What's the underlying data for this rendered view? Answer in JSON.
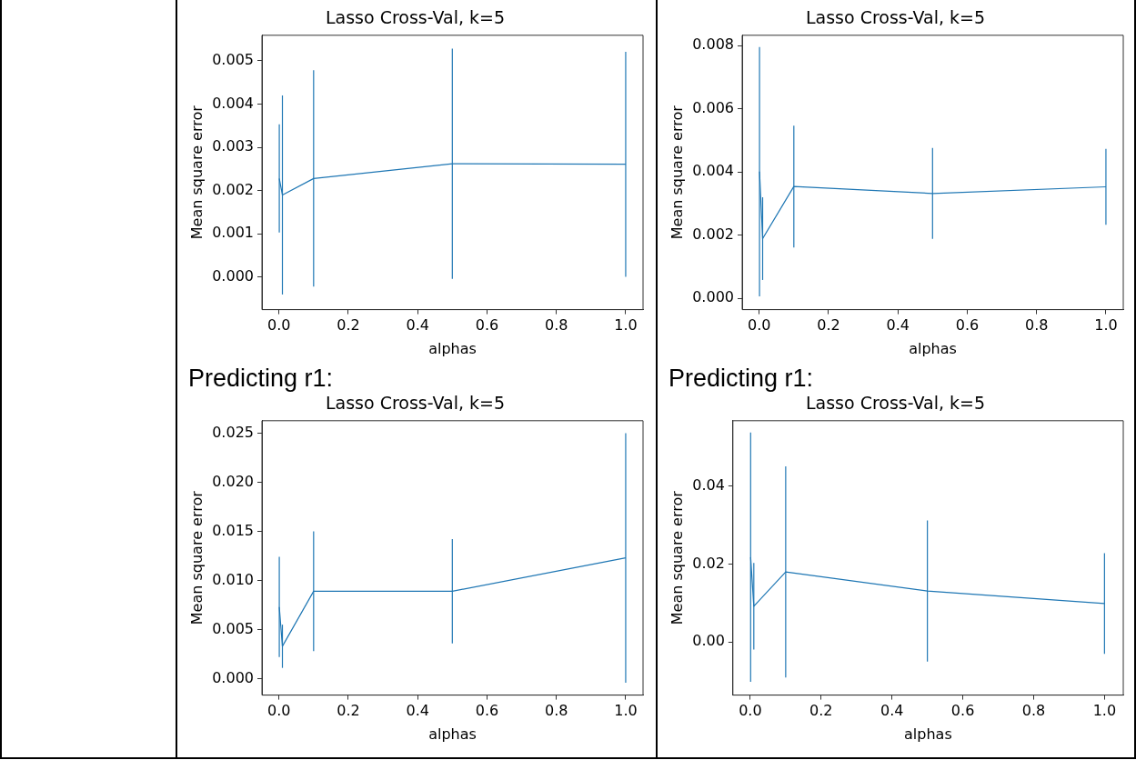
{
  "chart_data": [
    {
      "type": "line",
      "title": "Lasso Cross-Val, k=5",
      "xlabel": "alphas",
      "ylabel": "Mean square error",
      "marker": "none",
      "line_style": "solid",
      "grid": false,
      "x": [
        0.001,
        0.01,
        0.1,
        0.5,
        1.0
      ],
      "series": [
        {
          "color": "#1f77b4",
          "values": [
            0.00228,
            0.0019,
            0.00228,
            0.00262,
            0.00261
          ],
          "errors": [
            0.00125,
            0.0023,
            0.0025,
            0.00266,
            0.0026
          ]
        }
      ],
      "xlim": [
        -0.049,
        1.05
      ],
      "xticks": [
        {
          "value": 0,
          "label": "0.0"
        },
        {
          "value": 0.2,
          "label": "0.2"
        },
        {
          "value": 0.4,
          "label": "0.4"
        },
        {
          "value": 0.6,
          "label": "0.6"
        },
        {
          "value": 0.8,
          "label": "0.8"
        },
        {
          "value": 1,
          "label": "1.0"
        }
      ],
      "ylim": [
        -0.00075,
        0.00559
      ],
      "yticks": [
        {
          "value": 0,
          "label": "0.000"
        },
        {
          "value": 0.001,
          "label": "0.001"
        },
        {
          "value": 0.002,
          "label": "0.002"
        },
        {
          "value": 0.003,
          "label": "0.003"
        },
        {
          "value": 0.004,
          "label": "0.004"
        },
        {
          "value": 0.005,
          "label": "0.005"
        }
      ]
    },
    {
      "type": "line",
      "title": "Lasso Cross-Val, k=5",
      "xlabel": "alphas",
      "ylabel": "Mean square error",
      "marker": "none",
      "line_style": "solid",
      "grid": false,
      "x": [
        0.001,
        0.01,
        0.1,
        0.5,
        1.0
      ],
      "series": [
        {
          "color": "#1f77b4",
          "values": [
            0.00401,
            0.00189,
            0.00354,
            0.00332,
            0.00353
          ],
          "errors": [
            0.00395,
            0.00131,
            0.00193,
            0.00144,
            0.0012
          ]
        }
      ],
      "xlim": [
        -0.049,
        1.05
      ],
      "xticks": [
        {
          "value": 0,
          "label": "0.0"
        },
        {
          "value": 0.2,
          "label": "0.2"
        },
        {
          "value": 0.4,
          "label": "0.4"
        },
        {
          "value": 0.6,
          "label": "0.6"
        },
        {
          "value": 0.8,
          "label": "0.8"
        },
        {
          "value": 1,
          "label": "1.0"
        }
      ],
      "ylim": [
        -0.00036,
        0.00833
      ],
      "yticks": [
        {
          "value": 0,
          "label": "0.000"
        },
        {
          "value": 0.002,
          "label": "0.002"
        },
        {
          "value": 0.004,
          "label": "0.004"
        },
        {
          "value": 0.006,
          "label": "0.006"
        },
        {
          "value": 0.008,
          "label": "0.008"
        }
      ]
    },
    {
      "type": "line",
      "title": "Lasso Cross-Val, k=5",
      "xlabel": "alphas",
      "ylabel": "Mean square error",
      "marker": "none",
      "line_style": "solid",
      "grid": false,
      "annotations": [
        "Predicting r1:"
      ],
      "x": [
        0.001,
        0.01,
        0.1,
        0.5,
        1.0
      ],
      "series": [
        {
          "color": "#1f77b4",
          "values": [
            0.0073,
            0.0033,
            0.0089,
            0.0089,
            0.0123
          ],
          "errors": [
            0.0051,
            0.0022,
            0.0061,
            0.0053,
            0.0127
          ]
        }
      ],
      "xlim": [
        -0.049,
        1.05
      ],
      "xticks": [
        {
          "value": 0,
          "label": "0.0"
        },
        {
          "value": 0.2,
          "label": "0.2"
        },
        {
          "value": 0.4,
          "label": "0.4"
        },
        {
          "value": 0.6,
          "label": "0.6"
        },
        {
          "value": 0.8,
          "label": "0.8"
        },
        {
          "value": 1,
          "label": "1.0"
        }
      ],
      "ylim": [
        -0.00167,
        0.02626
      ],
      "yticks": [
        {
          "value": 0,
          "label": "0.000"
        },
        {
          "value": 0.005,
          "label": "0.005"
        },
        {
          "value": 0.01,
          "label": "0.010"
        },
        {
          "value": 0.015,
          "label": "0.015"
        },
        {
          "value": 0.02,
          "label": "0.020"
        },
        {
          "value": 0.025,
          "label": "0.025"
        }
      ]
    },
    {
      "type": "line",
      "title": "Lasso Cross-Val, k=5",
      "xlabel": "alphas",
      "ylabel": "Mean square error",
      "marker": "none",
      "line_style": "solid",
      "grid": false,
      "annotations": [
        "Predicting r1:"
      ],
      "x": [
        0.001,
        0.01,
        0.1,
        0.5,
        1.0
      ],
      "series": [
        {
          "color": "#1f77b4",
          "values": [
            0.0218,
            0.0092,
            0.018,
            0.0131,
            0.0099
          ],
          "errors": [
            0.032,
            0.0111,
            0.0271,
            0.0181,
            0.0129
          ]
        }
      ],
      "xlim": [
        -0.049,
        1.053
      ],
      "xticks": [
        {
          "value": 0,
          "label": "0.0"
        },
        {
          "value": 0.2,
          "label": "0.2"
        },
        {
          "value": 0.4,
          "label": "0.4"
        },
        {
          "value": 0.6,
          "label": "0.6"
        },
        {
          "value": 0.8,
          "label": "0.8"
        },
        {
          "value": 1,
          "label": "1.0"
        }
      ],
      "ylim": [
        -0.0136,
        0.0568
      ],
      "yticks": [
        {
          "value": 0,
          "label": "0.00"
        },
        {
          "value": 0.02,
          "label": "0.02"
        },
        {
          "value": 0.04,
          "label": "0.04"
        }
      ]
    }
  ]
}
